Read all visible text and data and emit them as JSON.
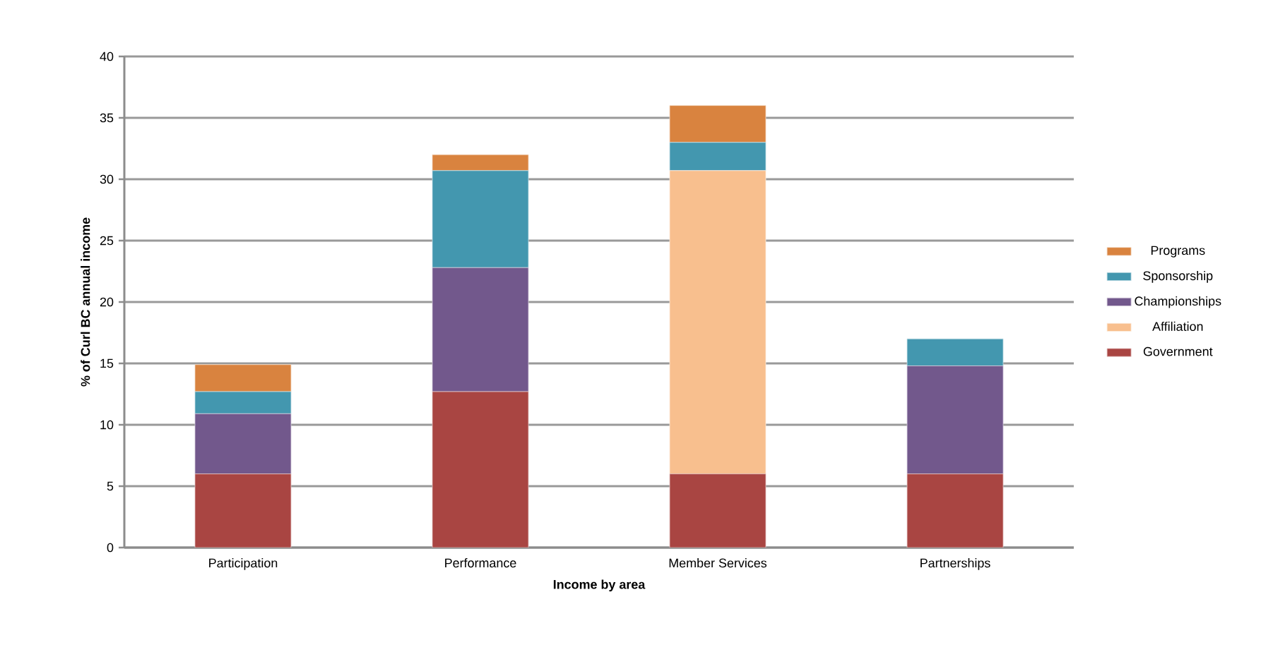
{
  "chart_data": {
    "type": "bar",
    "stacked": true,
    "xlabel": "Income by area",
    "ylabel": "% of Curl BC annual income",
    "categories": [
      "Participation",
      "Performance",
      "Member Services",
      "Partnerships"
    ],
    "series": [
      {
        "name": "Government",
        "color": "#a94542",
        "values": [
          6,
          12.7,
          6,
          6
        ]
      },
      {
        "name": "Affiliation",
        "color": "#f8bf8e",
        "values": [
          null,
          null,
          24.7,
          null
        ]
      },
      {
        "name": "Championships",
        "color": "#72588c",
        "values": [
          4.9,
          10.1,
          null,
          8.8
        ]
      },
      {
        "name": "Sponsorship",
        "color": "#4397af",
        "values": [
          1.8,
          7.9,
          2.3,
          2.2
        ]
      },
      {
        "name": "Programs",
        "color": "#d9833f",
        "values": [
          2.2,
          1.3,
          3,
          null
        ]
      }
    ],
    "ylim": [
      0,
      40
    ],
    "yticks": [
      0,
      5,
      10,
      15,
      20,
      25,
      30,
      35,
      40
    ],
    "grid": "y",
    "legend": "right"
  }
}
